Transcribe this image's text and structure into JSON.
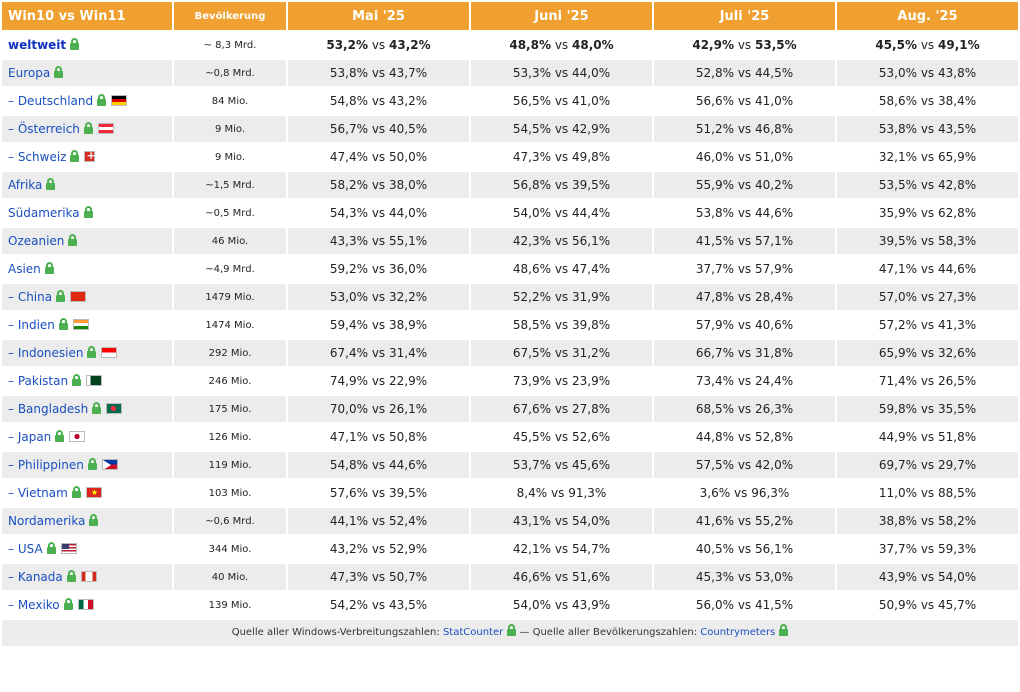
{
  "header": {
    "col_name": "Win10 vs Win11",
    "col_pop": "Bevölkerung",
    "months": [
      "Mai '25",
      "Juni '25",
      "Juli '25",
      "Aug. '25"
    ]
  },
  "rows": [
    {
      "name": "weltweit",
      "pop": "~ 8,3 Mrd.",
      "flag": "",
      "world": true,
      "v": [
        [
          "53,2%",
          "43,2%"
        ],
        [
          "48,8%",
          "48,0%"
        ],
        [
          "42,9%",
          "53,5%"
        ],
        [
          "45,5%",
          "49,1%"
        ]
      ]
    },
    {
      "name": "Europa",
      "pop": "~0,8 Mrd.",
      "flag": "",
      "v": [
        [
          "53,8%",
          "43,7%"
        ],
        [
          "53,3%",
          "44,0%"
        ],
        [
          "52,8%",
          "44,5%"
        ],
        [
          "53,0%",
          "43,8%"
        ]
      ]
    },
    {
      "name": "– Deutschland",
      "pop": "84 Mio.",
      "flag": "de",
      "v": [
        [
          "54,8%",
          "43,2%"
        ],
        [
          "56,5%",
          "41,0%"
        ],
        [
          "56,6%",
          "41,0%"
        ],
        [
          "58,6%",
          "38,4%"
        ]
      ]
    },
    {
      "name": "– Österreich",
      "pop": "9 Mio.",
      "flag": "at",
      "v": [
        [
          "56,7%",
          "40,5%"
        ],
        [
          "54,5%",
          "42,9%"
        ],
        [
          "51,2%",
          "46,8%"
        ],
        [
          "53,8%",
          "43,5%"
        ]
      ]
    },
    {
      "name": "– Schweiz",
      "pop": "9 Mio.",
      "flag": "ch",
      "v": [
        [
          "47,4%",
          "50,0%"
        ],
        [
          "47,3%",
          "49,8%"
        ],
        [
          "46,0%",
          "51,0%"
        ],
        [
          "32,1%",
          "65,9%"
        ]
      ]
    },
    {
      "name": "Afrika",
      "pop": "~1,5 Mrd.",
      "flag": "",
      "v": [
        [
          "58,2%",
          "38,0%"
        ],
        [
          "56,8%",
          "39,5%"
        ],
        [
          "55,9%",
          "40,2%"
        ],
        [
          "53,5%",
          "42,8%"
        ]
      ]
    },
    {
      "name": "Südamerika",
      "pop": "~0,5 Mrd.",
      "flag": "",
      "v": [
        [
          "54,3%",
          "44,0%"
        ],
        [
          "54,0%",
          "44,4%"
        ],
        [
          "53,8%",
          "44,6%"
        ],
        [
          "35,9%",
          "62,8%"
        ]
      ]
    },
    {
      "name": "Ozeanien",
      "pop": "46 Mio.",
      "flag": "",
      "v": [
        [
          "43,3%",
          "55,1%"
        ],
        [
          "42,3%",
          "56,1%"
        ],
        [
          "41,5%",
          "57,1%"
        ],
        [
          "39,5%",
          "58,3%"
        ]
      ]
    },
    {
      "name": "Asien",
      "pop": "~4,9 Mrd.",
      "flag": "",
      "v": [
        [
          "59,2%",
          "36,0%"
        ],
        [
          "48,6%",
          "47,4%"
        ],
        [
          "37,7%",
          "57,9%"
        ],
        [
          "47,1%",
          "44,6%"
        ]
      ]
    },
    {
      "name": "– China",
      "pop": "1479 Mio.",
      "flag": "cn",
      "v": [
        [
          "53,0%",
          "32,2%"
        ],
        [
          "52,2%",
          "31,9%"
        ],
        [
          "47,8%",
          "28,4%"
        ],
        [
          "57,0%",
          "27,3%"
        ]
      ]
    },
    {
      "name": "– Indien",
      "pop": "1474 Mio.",
      "flag": "in",
      "v": [
        [
          "59,4%",
          "38,9%"
        ],
        [
          "58,5%",
          "39,8%"
        ],
        [
          "57,9%",
          "40,6%"
        ],
        [
          "57,2%",
          "41,3%"
        ]
      ]
    },
    {
      "name": "– Indonesien",
      "pop": "292 Mio.",
      "flag": "id",
      "v": [
        [
          "67,4%",
          "31,4%"
        ],
        [
          "67,5%",
          "31,2%"
        ],
        [
          "66,7%",
          "31,8%"
        ],
        [
          "65,9%",
          "32,6%"
        ]
      ]
    },
    {
      "name": "– Pakistan",
      "pop": "246 Mio.",
      "flag": "pk",
      "v": [
        [
          "74,9%",
          "22,9%"
        ],
        [
          "73,9%",
          "23,9%"
        ],
        [
          "73,4%",
          "24,4%"
        ],
        [
          "71,4%",
          "26,5%"
        ]
      ]
    },
    {
      "name": "– Bangladesh",
      "pop": "175 Mio.",
      "flag": "bd",
      "v": [
        [
          "70,0%",
          "26,1%"
        ],
        [
          "67,6%",
          "27,8%"
        ],
        [
          "68,5%",
          "26,3%"
        ],
        [
          "59,8%",
          "35,5%"
        ]
      ]
    },
    {
      "name": "– Japan",
      "pop": "126 Mio.",
      "flag": "jp",
      "v": [
        [
          "47,1%",
          "50,8%"
        ],
        [
          "45,5%",
          "52,6%"
        ],
        [
          "44,8%",
          "52,8%"
        ],
        [
          "44,9%",
          "51,8%"
        ]
      ]
    },
    {
      "name": "– Philippinen",
      "pop": "119 Mio.",
      "flag": "ph",
      "v": [
        [
          "54,8%",
          "44,6%"
        ],
        [
          "53,7%",
          "45,6%"
        ],
        [
          "57,5%",
          "42,0%"
        ],
        [
          "69,7%",
          "29,7%"
        ]
      ]
    },
    {
      "name": "– Vietnam",
      "pop": "103 Mio.",
      "flag": "vn",
      "v": [
        [
          "57,6%",
          "39,5%"
        ],
        [
          "8,4%",
          "91,3%"
        ],
        [
          "3,6%",
          "96,3%"
        ],
        [
          "11,0%",
          "88,5%"
        ]
      ]
    },
    {
      "name": "Nordamerika",
      "pop": "~0,6 Mrd.",
      "flag": "",
      "v": [
        [
          "44,1%",
          "52,4%"
        ],
        [
          "43,1%",
          "54,0%"
        ],
        [
          "41,6%",
          "55,2%"
        ],
        [
          "38,8%",
          "58,2%"
        ]
      ]
    },
    {
      "name": "– USA",
      "pop": "344 Mio.",
      "flag": "us",
      "v": [
        [
          "43,2%",
          "52,9%"
        ],
        [
          "42,1%",
          "54,7%"
        ],
        [
          "40,5%",
          "56,1%"
        ],
        [
          "37,7%",
          "59,3%"
        ]
      ]
    },
    {
      "name": "– Kanada",
      "pop": "40 Mio.",
      "flag": "ca",
      "v": [
        [
          "47,3%",
          "50,7%"
        ],
        [
          "46,6%",
          "51,6%"
        ],
        [
          "45,3%",
          "53,0%"
        ],
        [
          "43,9%",
          "54,0%"
        ]
      ]
    },
    {
      "name": "– Mexiko",
      "pop": "139 Mio.",
      "flag": "mx",
      "v": [
        [
          "54,2%",
          "43,5%"
        ],
        [
          "54,0%",
          "43,9%"
        ],
        [
          "56,0%",
          "41,5%"
        ],
        [
          "50,9%",
          "45,7%"
        ]
      ]
    }
  ],
  "vs_label": "vs",
  "footer": {
    "text1": "Quelle aller Windows-Verbreitungszahlen:",
    "link1": "StatCounter",
    "sep": "— Quelle aller Bevölkerungszahlen:",
    "link2": "Countrymeters"
  }
}
